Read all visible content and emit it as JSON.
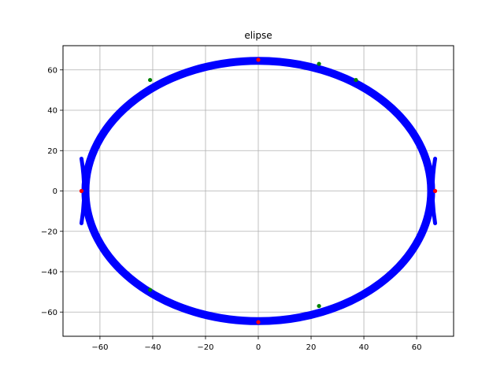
{
  "chart_data": {
    "type": "scatter",
    "title": "elipse",
    "xlabel": "",
    "ylabel": "",
    "xlim": [
      -74,
      74
    ],
    "ylim": [
      -72,
      72
    ],
    "grid": true,
    "xticks": [
      -60,
      -40,
      -20,
      0,
      20,
      40,
      60
    ],
    "yticks": [
      -60,
      -40,
      -20,
      0,
      20,
      40,
      60
    ],
    "xtick_labels": [
      "−60",
      "−40",
      "−20",
      "0",
      "20",
      "40",
      "60"
    ],
    "ytick_labels": [
      "−60",
      "−40",
      "−20",
      "0",
      "20",
      "40",
      "60"
    ],
    "series": [
      {
        "role": "ellipse-band",
        "color": "#0000ff",
        "semi_axis_x": 65.5,
        "semi_axis_y": 64.5,
        "band_width": 1.5,
        "end_cusps": [
          {
            "x": [
              -67,
              -65
            ],
            "y": [
              -16,
              16
            ]
          },
          {
            "x": [
              65,
              67
            ],
            "y": [
              -16,
              16
            ]
          }
        ]
      },
      {
        "role": "red-points",
        "color": "#ff0000",
        "points": [
          [
            0,
            65
          ],
          [
            0,
            -65
          ],
          [
            -67,
            0
          ],
          [
            67,
            0
          ]
        ]
      },
      {
        "role": "green-points",
        "color": "#008000",
        "points": [
          [
            -41,
            55
          ],
          [
            23,
            63
          ],
          [
            37,
            55
          ],
          [
            -41,
            -49
          ],
          [
            23,
            -57
          ]
        ]
      }
    ]
  }
}
